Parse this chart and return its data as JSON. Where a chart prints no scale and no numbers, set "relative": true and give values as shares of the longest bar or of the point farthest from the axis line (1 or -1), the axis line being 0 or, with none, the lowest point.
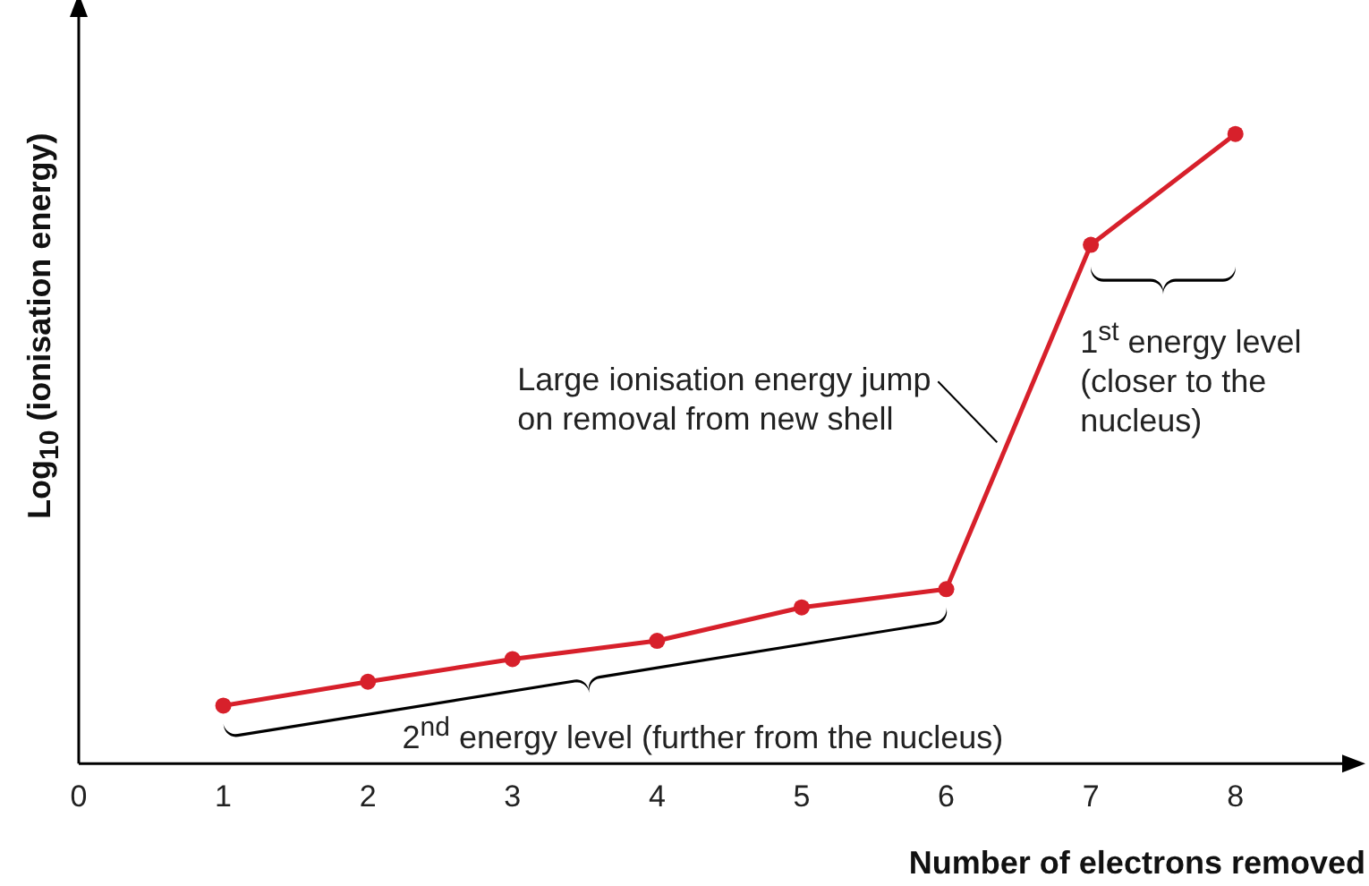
{
  "chart_data": {
    "type": "line",
    "relative": true,
    "xlabel": "Number of electrons removed",
    "ylabel": "Log$_{10}$ (ionisation energy)",
    "x": [
      1,
      2,
      3,
      4,
      5,
      6,
      7,
      8
    ],
    "xlim": [
      0,
      8.8
    ],
    "xticks": [
      0,
      1,
      2,
      3,
      4,
      5,
      6,
      7,
      8
    ],
    "series": [
      {
        "color": "#d7202b",
        "values": [
          0.092,
          0.13,
          0.166,
          0.195,
          0.248,
          0.277,
          0.824,
          1
        ]
      }
    ],
    "marker": "circle",
    "line_style": "solid",
    "grid": false,
    "legend": false,
    "annotations": [
      {
        "text": "Large ionisation energy jump on removal from new shell",
        "x": 6.5,
        "y": 0.55
      },
      "1$^{st}$ energy level (closer to the nucleus)",
      "2$^{nd}$ energy level (further from the nucleus)"
    ]
  }
}
